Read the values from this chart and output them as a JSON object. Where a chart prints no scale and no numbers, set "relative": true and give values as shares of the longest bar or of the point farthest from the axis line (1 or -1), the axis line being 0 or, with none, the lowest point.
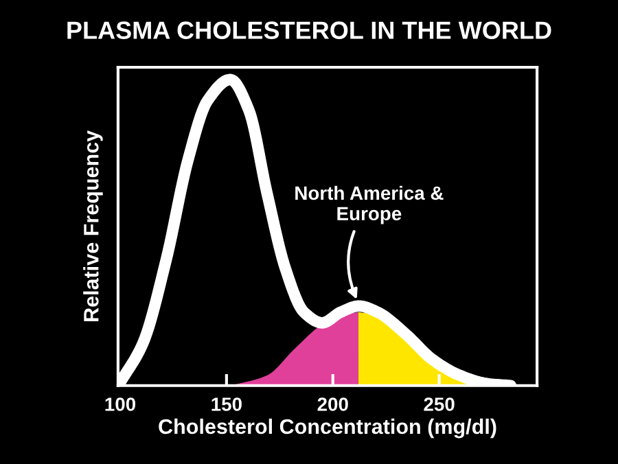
{
  "chart_data": {
    "type": "area",
    "title": "PLASMA CHOLESTEROL IN THE WORLD",
    "xlabel": "Cholesterol Concentration (mg/dl)",
    "ylabel": "Relative Frequency",
    "relative": true,
    "xlim": [
      99,
      296
    ],
    "xticks": [
      100,
      150,
      200,
      250
    ],
    "grid": false,
    "annotations": [
      {
        "text": "North America &\nEurope",
        "x": 212,
        "y": 0.27
      }
    ],
    "series": [
      {
        "type": "area",
        "color": "#e0409a",
        "x": [
          152,
          169,
          182,
          195,
          204,
          212
        ],
        "values": [
          0,
          0.033,
          0.12,
          0.2,
          0.23,
          0.24
        ]
      },
      {
        "type": "area",
        "color": "#ffe600",
        "x": [
          212,
          221,
          234,
          247,
          260,
          268
        ],
        "values": [
          0.24,
          0.23,
          0.17,
          0.09,
          0.03,
          0
        ]
      },
      {
        "type": "line",
        "color": "#ffffff",
        "x": [
          100,
          110.8,
          121.6,
          132,
          141,
          151.8,
          160.5,
          169,
          177.8,
          186.4,
          195,
          203.7,
          212.3,
          221,
          234,
          246.9,
          259.8,
          272.8,
          283.6
        ],
        "values": [
          0.01,
          0.14,
          0.41,
          0.74,
          0.93,
          1.0,
          0.9,
          0.63,
          0.38,
          0.24,
          0.205,
          0.24,
          0.26,
          0.24,
          0.17,
          0.085,
          0.033,
          0.006,
          0
        ]
      }
    ]
  }
}
